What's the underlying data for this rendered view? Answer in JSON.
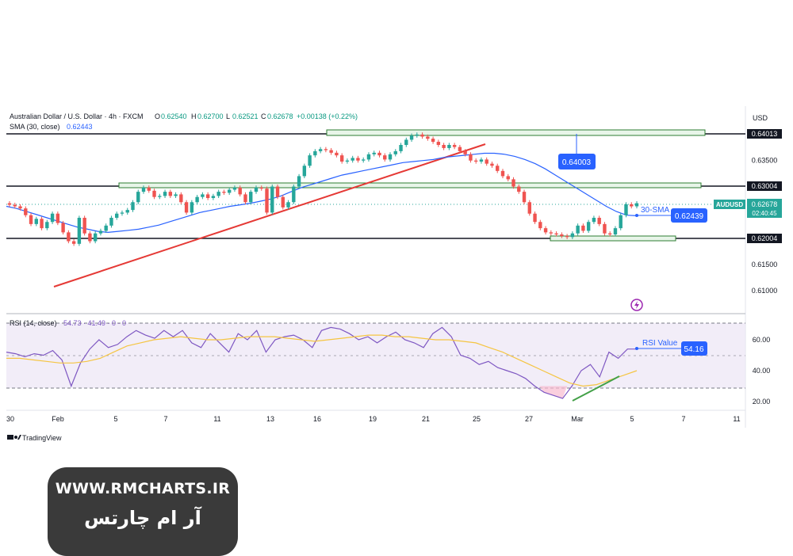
{
  "header": {
    "symbol_line": "Australian Dollar / U.S. Dollar · 4h · FXCM",
    "o_label": "O",
    "o_value": "0.62540",
    "h_label": "H",
    "h_value": "0.62700",
    "l_label": "L",
    "l_value": "0.62521",
    "c_label": "C",
    "c_value": "0.62678",
    "change": "+0.00138 (+0.22%)",
    "sma_label": "SMA (30, close)",
    "sma_value": "0.62443",
    "rsi_label": "RSI (14, close)",
    "rsi_values": "54.73  ·  41.49  ·  0  ·  0"
  },
  "currency": "USD",
  "branding": "TradingView",
  "chart_data": {
    "type": "line",
    "series": [
      {
        "name": "AUDUSD",
        "values": [
          0.6265,
          0.6262,
          0.6258,
          0.6245,
          0.6228,
          0.6238,
          0.622,
          0.6232,
          0.6248,
          0.623,
          0.6212,
          0.6195,
          0.619,
          0.624,
          0.621,
          0.6195,
          0.621,
          0.6215,
          0.6225,
          0.624,
          0.6248,
          0.625,
          0.6255,
          0.627,
          0.629,
          0.6298,
          0.6292,
          0.628,
          0.6282,
          0.629,
          0.6282,
          0.6285,
          0.627,
          0.625,
          0.627,
          0.628,
          0.6285,
          0.6278,
          0.6282,
          0.629,
          0.6288,
          0.6294,
          0.6298,
          0.6285,
          0.627,
          0.629,
          0.6298,
          0.6296,
          0.625,
          0.63,
          0.628,
          0.626,
          0.627,
          0.63,
          0.632,
          0.634,
          0.636,
          0.6368,
          0.6372,
          0.637,
          0.6365,
          0.636,
          0.6348,
          0.635,
          0.6355,
          0.635,
          0.6352,
          0.6362,
          0.6365,
          0.636,
          0.6352,
          0.6362,
          0.6368,
          0.638,
          0.639,
          0.6398,
          0.64,
          0.6396,
          0.6392,
          0.6386,
          0.638,
          0.6374,
          0.638,
          0.6376,
          0.6368,
          0.6362,
          0.635,
          0.6348,
          0.6352,
          0.6344,
          0.634,
          0.633,
          0.632,
          0.6314,
          0.63,
          0.629,
          0.627,
          0.6248,
          0.6232,
          0.622,
          0.6212,
          0.621,
          0.6208,
          0.6205,
          0.6203,
          0.621,
          0.6225,
          0.6215,
          0.6232,
          0.624,
          0.6228,
          0.621,
          0.6208,
          0.622,
          0.6245,
          0.6266,
          0.6262,
          0.6268
        ]
      },
      {
        "name": "SMA (30, close)",
        "values": [
          0.6262,
          0.6258,
          0.6252,
          0.6246,
          0.624,
          0.6234,
          0.6228,
          0.6222,
          0.6218,
          0.6214,
          0.6212,
          0.6214,
          0.6216,
          0.6218,
          0.6222,
          0.6226,
          0.6232,
          0.6238,
          0.6244,
          0.625,
          0.6254,
          0.6258,
          0.6262,
          0.6265,
          0.6268,
          0.6272,
          0.6276,
          0.6282,
          0.629,
          0.6298,
          0.6304,
          0.631,
          0.6316,
          0.6322,
          0.6326,
          0.633,
          0.6334,
          0.6338,
          0.6342,
          0.6346,
          0.6348,
          0.635,
          0.6352,
          0.6356,
          0.6358,
          0.636,
          0.6362,
          0.6364,
          0.6364,
          0.6362,
          0.6358,
          0.6352,
          0.6344,
          0.6334,
          0.6322,
          0.631,
          0.6298,
          0.6286,
          0.6274,
          0.6262,
          0.6252,
          0.6245,
          0.6244
        ]
      },
      {
        "name": "RSI (14, close)",
        "values": [
          52,
          51,
          49,
          51,
          50,
          53,
          47,
          30,
          45,
          54,
          60,
          55,
          57,
          62,
          66,
          63,
          61,
          66,
          62,
          66,
          58,
          55,
          64,
          58,
          52,
          64,
          60,
          66,
          52,
          60,
          62,
          63,
          60,
          55,
          66,
          68,
          67,
          64,
          60,
          62,
          58,
          62,
          65,
          60,
          58,
          55,
          64,
          68,
          62,
          50,
          48,
          44,
          46,
          42,
          40,
          38,
          35,
          30,
          26,
          24,
          22,
          30,
          40,
          44,
          36,
          52,
          48,
          54,
          54
        ]
      },
      {
        "name": "RSI-based MA",
        "values": [
          48,
          48,
          47,
          46,
          45,
          45,
          46,
          48,
          52,
          56,
          58,
          60,
          61,
          62,
          61,
          60,
          60,
          61,
          62,
          62,
          62,
          61,
          60,
          59,
          60,
          61,
          62,
          63,
          63,
          62,
          62,
          61,
          60,
          60,
          59,
          58,
          55,
          52,
          48,
          44,
          40,
          36,
          32,
          30,
          31,
          34,
          37,
          40
        ]
      }
    ],
    "price_axis": {
      "ticks": [
        "0.63500",
        "0.61500",
        "0.61000"
      ],
      "levels": [
        "0.64013",
        "0.63004",
        "0.62004"
      ],
      "last_price": "0.62678",
      "countdown": "02:40:45",
      "symbol_tag": "AUDUSD",
      "range": [
        0.6085,
        0.641
      ]
    },
    "rsi_axis": {
      "ticks": [
        "60.00",
        "40.00",
        "20.00"
      ],
      "range": [
        15,
        70
      ],
      "bands": [
        70,
        50,
        30
      ]
    },
    "x_ticks": [
      "30",
      "Feb",
      "5",
      "7",
      "11",
      "13",
      "16",
      "19",
      "21",
      "25",
      "27",
      "Mar",
      "5",
      "7",
      "11"
    ],
    "annotations": {
      "resistance_label": "0.64003",
      "sma_label": "30-SMA",
      "sma_value": "0.62439",
      "rsi_label": "RSI Value",
      "rsi_value": "54.16"
    },
    "colors": {
      "up": "#26a69a",
      "down": "#ef5350",
      "sma": "#2962ff",
      "rsi": "#7e57c2",
      "rsi_ma": "#f5c542",
      "trendline": "#e53935",
      "label_bg": "#2962ff",
      "zone": "#2e7d32"
    }
  },
  "watermark": {
    "url": "WWW.RMCHARTS.IR",
    "persian": "آر ام چارتس"
  }
}
